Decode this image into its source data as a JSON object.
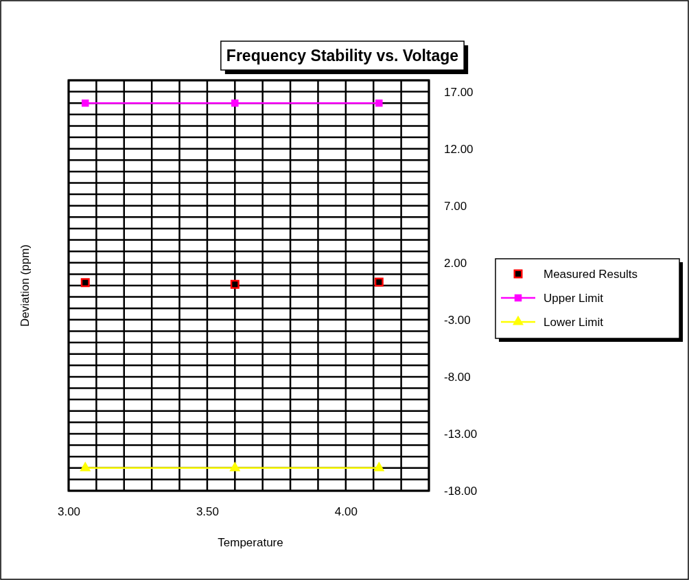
{
  "chart_data": {
    "type": "scatter",
    "title": "Frequency Stability vs. Voltage",
    "xlabel": "Temperature",
    "ylabel": "Deviation (ppm)",
    "xlim": [
      3.0,
      4.3
    ],
    "xticks": [
      {
        "value": 3.0,
        "label": "3.00"
      },
      {
        "value": 3.1,
        "label": null
      },
      {
        "value": 3.2,
        "label": null
      },
      {
        "value": 3.3,
        "label": null
      },
      {
        "value": 3.4,
        "label": null
      },
      {
        "value": 3.5,
        "label": "3.50"
      },
      {
        "value": 3.6,
        "label": null
      },
      {
        "value": 3.7,
        "label": null
      },
      {
        "value": 3.8,
        "label": null
      },
      {
        "value": 3.9,
        "label": null
      },
      {
        "value": 4.0,
        "label": "4.00"
      },
      {
        "value": 4.1,
        "label": null
      },
      {
        "value": 4.2,
        "label": null
      },
      {
        "value": 4.3,
        "label": null
      }
    ],
    "ylim": [
      -18,
      18
    ],
    "yticks": [
      {
        "value": -18,
        "label": "-18.00"
      },
      {
        "value": -17,
        "label": null
      },
      {
        "value": -16,
        "label": null
      },
      {
        "value": -15,
        "label": null
      },
      {
        "value": -14,
        "label": null
      },
      {
        "value": -13,
        "label": "-13.00"
      },
      {
        "value": -12,
        "label": null
      },
      {
        "value": -11,
        "label": null
      },
      {
        "value": -10,
        "label": null
      },
      {
        "value": -9,
        "label": null
      },
      {
        "value": -8,
        "label": "-8.00"
      },
      {
        "value": -7,
        "label": null
      },
      {
        "value": -6,
        "label": null
      },
      {
        "value": -5,
        "label": null
      },
      {
        "value": -4,
        "label": null
      },
      {
        "value": -3,
        "label": "-3.00"
      },
      {
        "value": -2,
        "label": null
      },
      {
        "value": -1,
        "label": null
      },
      {
        "value": 0,
        "label": null
      },
      {
        "value": 1,
        "label": null
      },
      {
        "value": 2,
        "label": "2.00"
      },
      {
        "value": 3,
        "label": null
      },
      {
        "value": 4,
        "label": null
      },
      {
        "value": 5,
        "label": null
      },
      {
        "value": 6,
        "label": null
      },
      {
        "value": 7,
        "label": "7.00"
      },
      {
        "value": 8,
        "label": null
      },
      {
        "value": 9,
        "label": null
      },
      {
        "value": 10,
        "label": null
      },
      {
        "value": 11,
        "label": null
      },
      {
        "value": 12,
        "label": "12.00"
      },
      {
        "value": 13,
        "label": null
      },
      {
        "value": 14,
        "label": null
      },
      {
        "value": 15,
        "label": null
      },
      {
        "value": 16,
        "label": null
      },
      {
        "value": 17,
        "label": "17.00"
      },
      {
        "value": 18,
        "label": null
      }
    ],
    "grid": true,
    "legend": "right",
    "series": [
      {
        "name": "Measured Results",
        "marker": "square",
        "color": "#000000",
        "x": [
          3.06,
          3.6,
          4.12
        ],
        "values": [
          0.25,
          0.1,
          0.3
        ]
      },
      {
        "name": "Upper Limit",
        "type": "line",
        "marker": "square",
        "color": "#ff00ff",
        "x": [
          3.06,
          3.6,
          4.12
        ],
        "values": [
          16,
          16,
          16
        ]
      },
      {
        "name": "Lower Limit",
        "type": "line",
        "marker": "triangle",
        "color": "#ffff00",
        "x": [
          3.06,
          3.6,
          4.12
        ],
        "values": [
          -16,
          -16,
          -16
        ]
      }
    ]
  }
}
